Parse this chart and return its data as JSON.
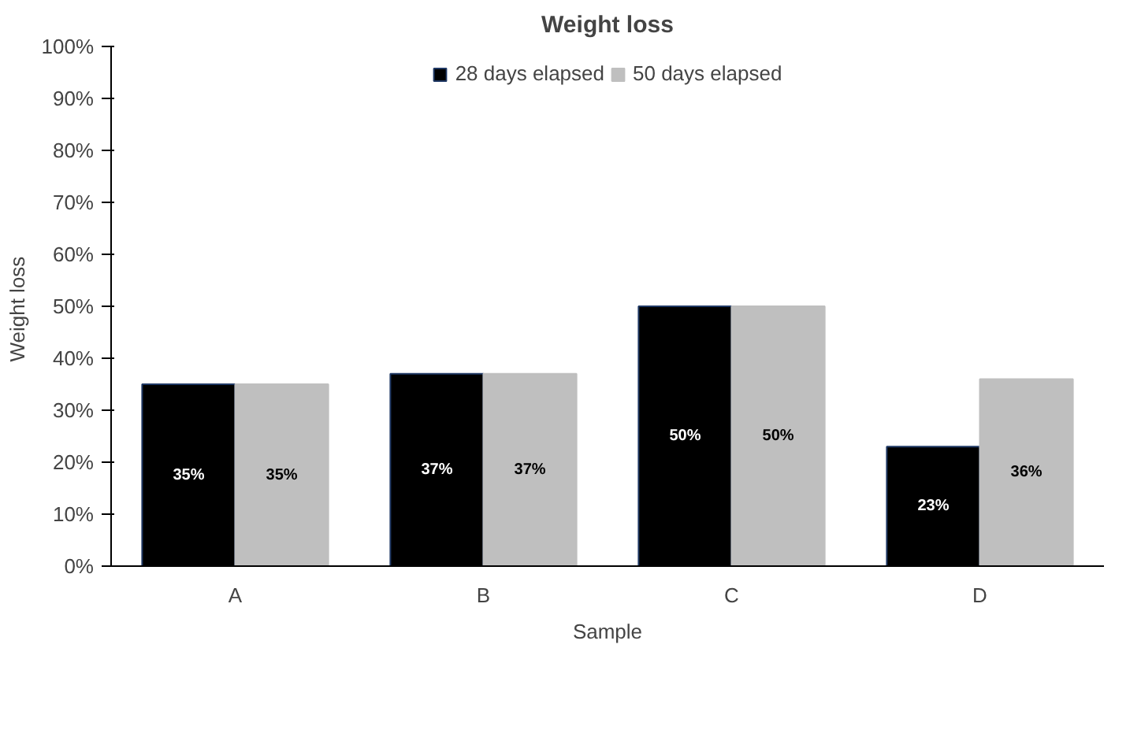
{
  "chart_data": {
    "type": "bar",
    "title": "Weight loss",
    "xlabel": "Sample",
    "ylabel": "Weight  loss",
    "categories": [
      "A",
      "B",
      "C",
      "D"
    ],
    "series": [
      {
        "name": "28 days elapsed",
        "color": "#000000",
        "values": [
          35,
          37,
          50,
          23
        ],
        "value_labels": [
          "35%",
          "37%",
          "50%",
          "23%"
        ]
      },
      {
        "name": "50 days elapsed",
        "color": "#bfbfbf",
        "values": [
          35,
          37,
          50,
          36
        ],
        "value_labels": [
          "35%",
          "37%",
          "50%",
          "36%"
        ]
      }
    ],
    "ylim": [
      0,
      100
    ],
    "yticks": [
      {
        "value": 0,
        "label": "0%"
      },
      {
        "value": 10,
        "label": "10%"
      },
      {
        "value": 20,
        "label": "20%"
      },
      {
        "value": 30,
        "label": "30%"
      },
      {
        "value": 40,
        "label": "40%"
      },
      {
        "value": 50,
        "label": "50%"
      },
      {
        "value": 60,
        "label": "60%"
      },
      {
        "value": 70,
        "label": "70%"
      },
      {
        "value": 80,
        "label": "80%"
      },
      {
        "value": 90,
        "label": "90%"
      },
      {
        "value": 100,
        "label": "100%"
      }
    ],
    "grid": false,
    "legend": "top"
  }
}
